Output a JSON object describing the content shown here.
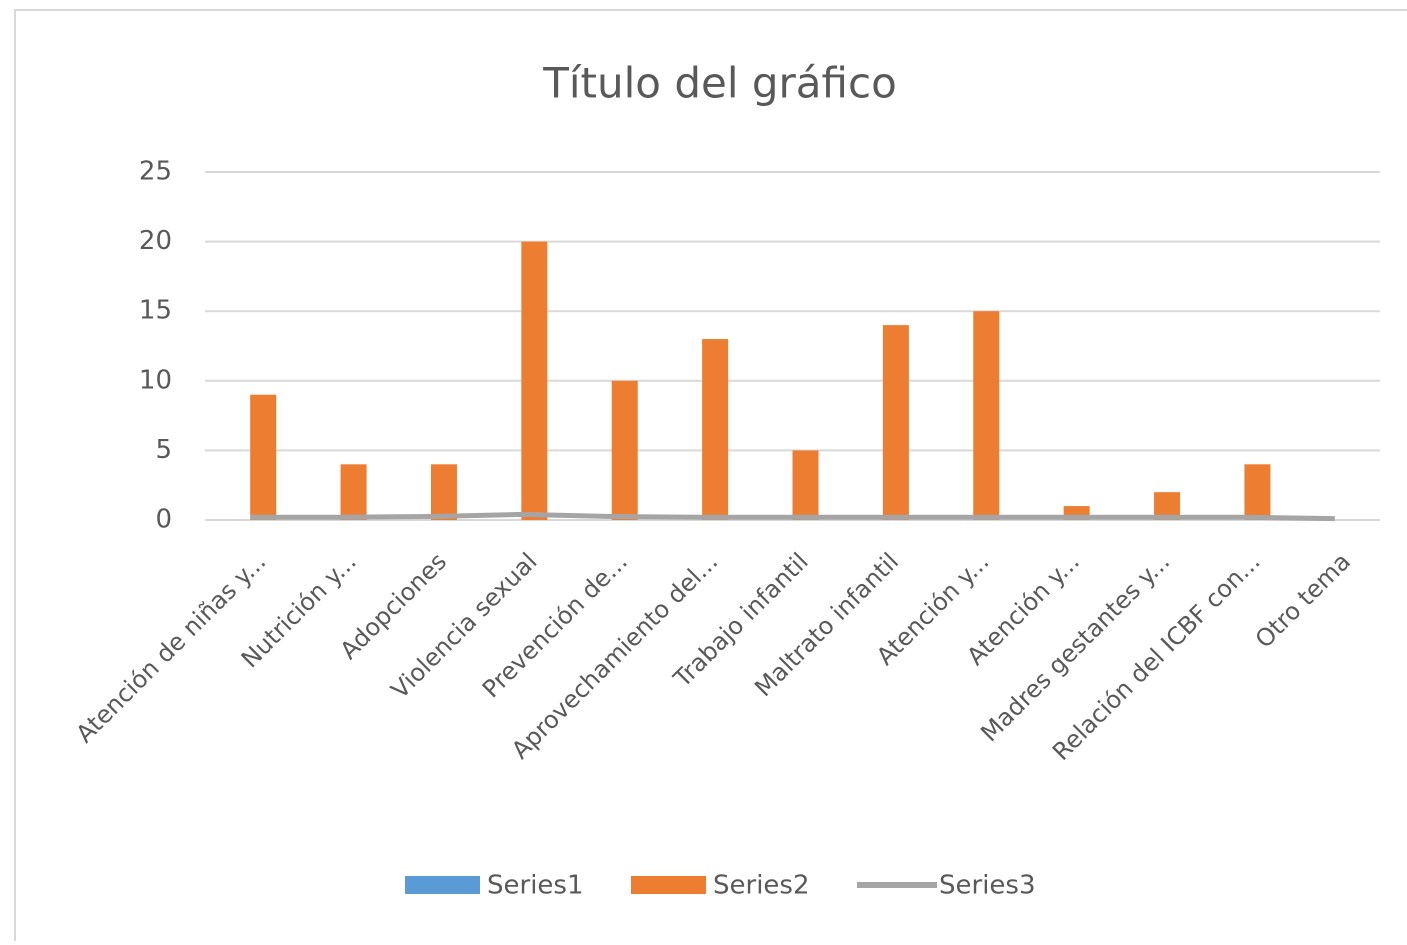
{
  "chart_data": {
    "type": "bar",
    "title": "Título del gráfico",
    "categories": [
      "Atención de niñas y...",
      "Nutrición y...",
      "Adopciones",
      "Violencia sexual",
      "Prevención de...",
      "Aprovechamiento del...",
      "Trabajo infantil",
      "Maltrato infantil",
      "Atención y...",
      "Atención y...",
      "Madres gestantes y...",
      "Relación del ICBF con...",
      "Otro tema"
    ],
    "series": [
      {
        "name": "Series1",
        "type": "bar",
        "color": "#5b9bd5",
        "values": [
          0,
          0,
          0,
          0,
          0,
          0,
          0,
          0,
          0,
          0,
          0,
          0,
          0
        ]
      },
      {
        "name": "Series2",
        "type": "bar",
        "color": "#ed7d31",
        "values": [
          9,
          4,
          4,
          20,
          10,
          13,
          5,
          14,
          15,
          1,
          2,
          4,
          0
        ]
      },
      {
        "name": "Series3",
        "type": "line",
        "color": "#a5a5a5",
        "values": [
          0.2,
          0.2,
          0.25,
          0.4,
          0.25,
          0.2,
          0.2,
          0.2,
          0.2,
          0.2,
          0.2,
          0.2,
          0.1
        ]
      }
    ],
    "ylim": [
      0,
      25
    ],
    "yticks": [
      0,
      5,
      10,
      15,
      20,
      25
    ],
    "grid": true,
    "legend": "bottom"
  }
}
